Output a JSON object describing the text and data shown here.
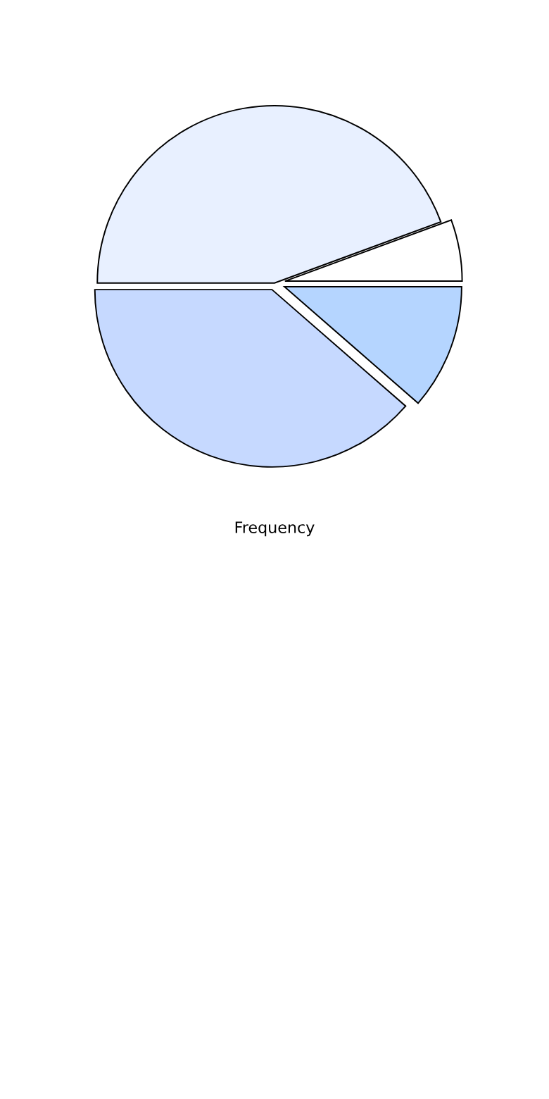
{
  "chart_data": {
    "type": "pie",
    "xlabel": "Frequency",
    "categories": [
      null,
      null,
      null,
      null
    ],
    "values": [
      38.6,
      11.4,
      5.6,
      44.4
    ],
    "colors": [
      "#c6d9ff",
      "#b5d5ff",
      "#ffffff",
      "#e8f0ff"
    ]
  }
}
